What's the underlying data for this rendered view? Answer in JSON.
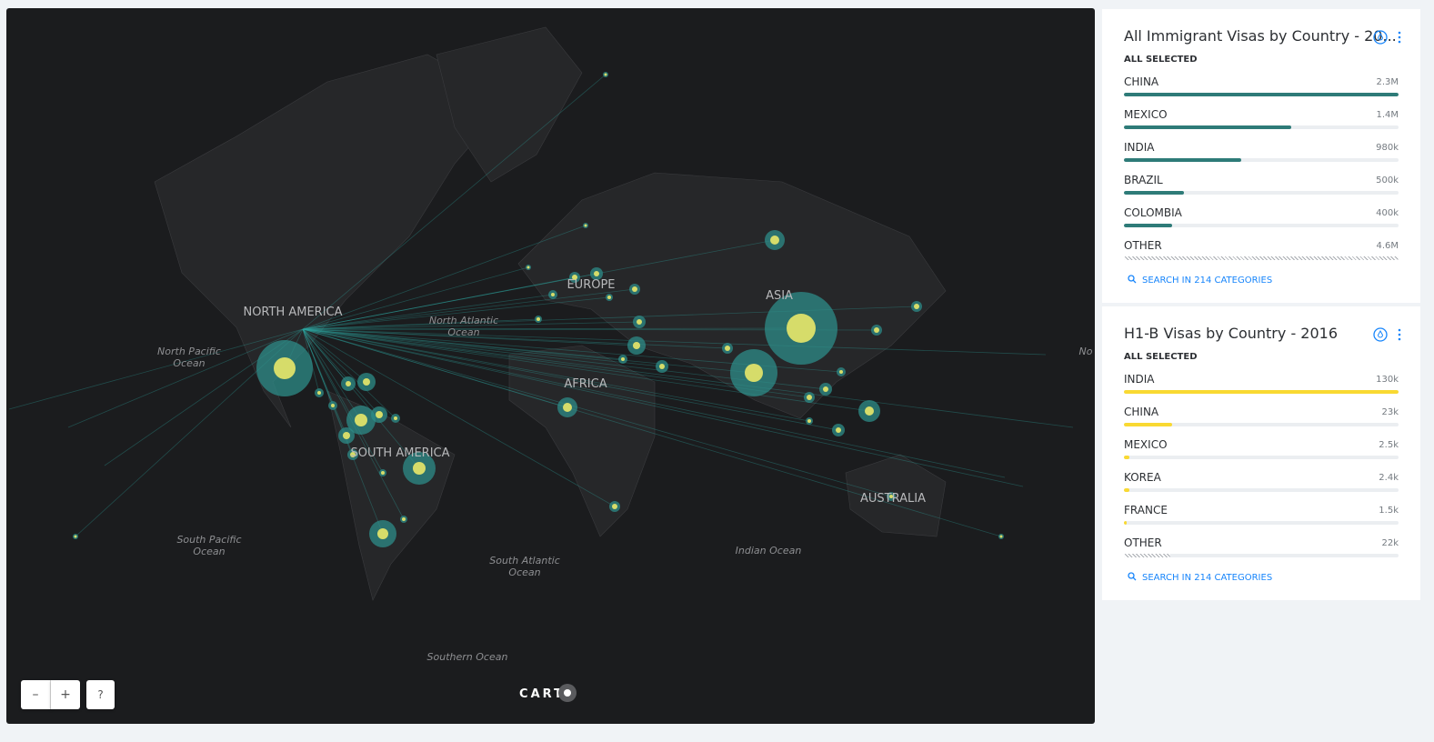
{
  "map": {
    "labels": {
      "north_america": [
        "NORTH AMERICA"
      ],
      "europe": [
        "EUROPE"
      ],
      "asia": [
        "ASIA"
      ],
      "africa": [
        "AFRICA"
      ],
      "south_america": [
        "SOUTH AMERICA"
      ],
      "australia": [
        "AUSTRALIA"
      ],
      "north_pacific": [
        "North Pacific",
        "Ocean"
      ],
      "north_atlantic": [
        "North Atlantic",
        "Ocean"
      ],
      "south_pacific": [
        "South Pacific",
        "Ocean"
      ],
      "south_atlantic": [
        "South Atlantic",
        "Ocean"
      ],
      "indian": [
        "Indian Ocean"
      ],
      "southern": [
        "Southern Ocean"
      ],
      "edge": [
        "No"
      ]
    },
    "attribution": "CART",
    "zoom_out": "–",
    "zoom_in": "+",
    "help": "?"
  },
  "widgets": [
    {
      "title": "All Immigrant Visas by Country - 20...",
      "status": "ALL SELECTED",
      "color": "#2e7b78",
      "items": [
        {
          "name": "CHINA",
          "value": 2300000,
          "label": "2.3M"
        },
        {
          "name": "MEXICO",
          "value": 1400000,
          "label": "1.4M"
        },
        {
          "name": "INDIA",
          "value": 980000,
          "label": "980k"
        },
        {
          "name": "BRAZIL",
          "value": 500000,
          "label": "500k"
        },
        {
          "name": "COLOMBIA",
          "value": 400000,
          "label": "400k"
        },
        {
          "name": "OTHER",
          "value": 4600000,
          "label": "4.6M"
        }
      ],
      "search": "SEARCH IN 214 CATEGORIES"
    },
    {
      "title": "H1-B Visas by Country - 2016",
      "status": "ALL SELECTED",
      "color": "#f9d932",
      "items": [
        {
          "name": "INDIA",
          "value": 130000,
          "label": "130k"
        },
        {
          "name": "CHINA",
          "value": 23000,
          "label": "23k"
        },
        {
          "name": "MEXICO",
          "value": 2500,
          "label": "2.5k"
        },
        {
          "name": "KOREA",
          "value": 2400,
          "label": "2.4k"
        },
        {
          "name": "FRANCE",
          "value": 1500,
          "label": "1.5k"
        },
        {
          "name": "OTHER",
          "value": 22000,
          "label": "22k"
        }
      ],
      "search": "SEARCH IN 214 CATEGORIES"
    }
  ]
}
